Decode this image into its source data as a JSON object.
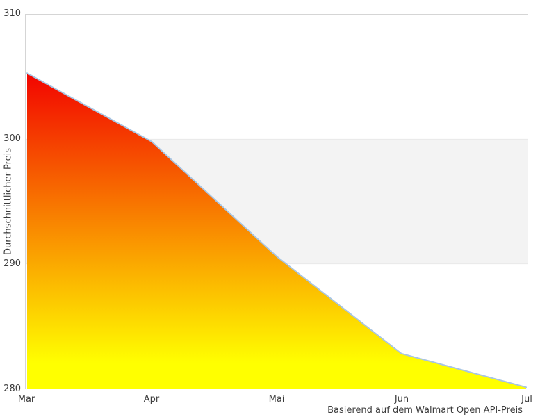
{
  "chart_data": {
    "type": "area",
    "categories": [
      "Mar",
      "Apr",
      "Mai",
      "Jun",
      "Jul"
    ],
    "values": [
      305.3,
      299.8,
      290.6,
      282.8,
      280.1
    ],
    "title": "",
    "xlabel": "",
    "ylabel": "Durchschnittlicher Preis",
    "caption": "Basierend auf dem Walmart Open API-Preis",
    "ylim": [
      280,
      310
    ],
    "yticks": [
      280,
      290,
      300,
      310
    ],
    "grid": false,
    "legend_position": "none",
    "band": {
      "from": 290,
      "to": 300,
      "color": "#f3f3f3",
      "edge_color": "#e8e8e8"
    },
    "colors": {
      "gradient_top": "#f20400",
      "gradient_bottom": "#ffff00",
      "line": "#a8c5e2",
      "plot_border": "#d5d5d5",
      "text": "#3c3c3c",
      "background": "#ffffff"
    }
  }
}
